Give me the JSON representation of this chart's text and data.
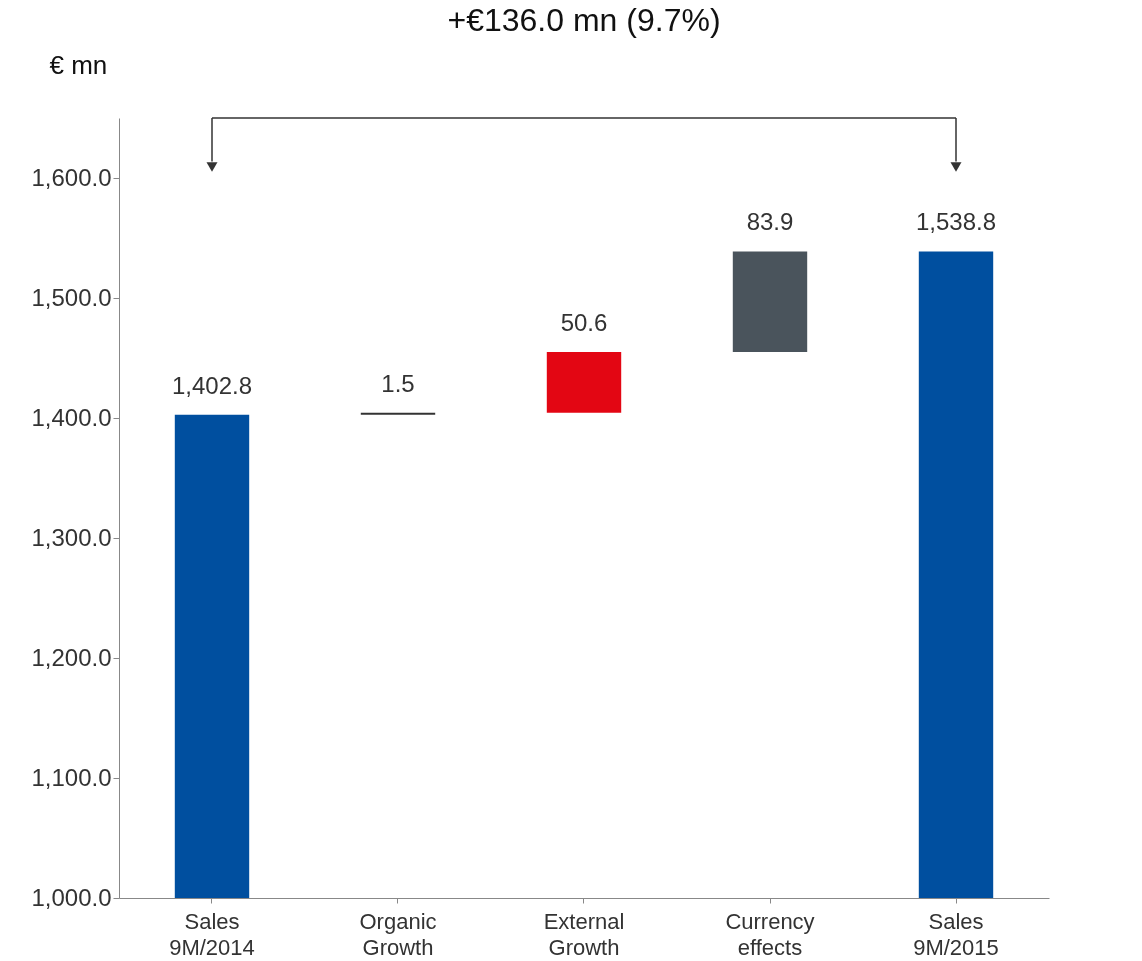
{
  "chart_data": {
    "type": "bar",
    "ylabel": "€ mn",
    "annotations": [
      "+€136.0 mn (9.7%)"
    ],
    "categories": [
      "Sales 9M/2014",
      "Organic Growth",
      "External Growth",
      "Currency effects",
      "Sales 9M/2015"
    ],
    "values": [
      1402.8,
      1.5,
      50.6,
      83.9,
      1538.8
    ],
    "base": [
      null,
      1402.8,
      1404.3,
      1454.9,
      null
    ],
    "colors": [
      "#004f9f",
      "#333333",
      "#e30613",
      "#4a545c",
      "#004f9f"
    ],
    "value_labels": [
      "1,402.8",
      "1.5",
      "50.6",
      "83.9",
      "1,538.8"
    ],
    "ylim": [
      1000,
      1650
    ],
    "yticks": [
      {
        "value": 1000,
        "label": "1,000.0"
      },
      {
        "value": 1100,
        "label": "1,100.0"
      },
      {
        "value": 1200,
        "label": "1,200.0"
      },
      {
        "value": 1300,
        "label": "1,300.0"
      },
      {
        "value": 1400,
        "label": "1,400.0"
      },
      {
        "value": 1500,
        "label": "1,500.0"
      },
      {
        "value": 1600,
        "label": "1,600.0"
      }
    ],
    "grid": false,
    "legend": false
  }
}
